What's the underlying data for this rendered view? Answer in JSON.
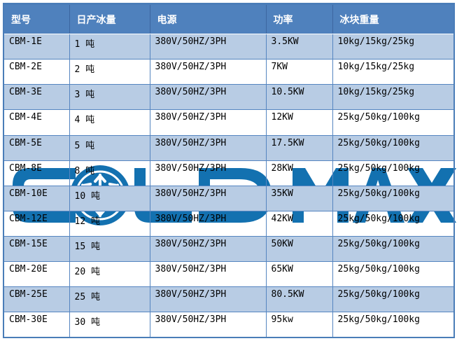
{
  "colors": {
    "header_bg": "#4f81bd",
    "header_text": "#ffffff",
    "row_shaded_bg": "#b8cce4",
    "row_plain_bg": "#ffffff",
    "table_border": "#4a7db8",
    "cell_border": "#5585c0",
    "header_cell_border": "#3c66a0",
    "watermark_blue": "#1371b0",
    "cell_text": "#000000"
  },
  "watermark": {
    "brand": "COLDMAX",
    "logo": "snowflake-logo"
  },
  "table": {
    "headers": [
      {
        "key": "model",
        "label": "型号"
      },
      {
        "key": "capacity",
        "label": "日产冰量"
      },
      {
        "key": "power_supply",
        "label": "电源"
      },
      {
        "key": "power",
        "label": "功率"
      },
      {
        "key": "block_weight",
        "label": "冰块重量"
      }
    ],
    "rows": [
      {
        "model": "CBM-1E",
        "capacity": "1 吨",
        "power_supply": "380V/50HZ/3PH",
        "power": "3.5KW",
        "block_weight": "10kg/15kg/25kg",
        "shaded": true
      },
      {
        "model": "CBM-2E",
        "capacity": "2 吨",
        "power_supply": "380V/50HZ/3PH",
        "power": "7KW",
        "block_weight": "10kg/15kg/25kg",
        "shaded": false
      },
      {
        "model": "CBM-3E",
        "capacity": "3 吨",
        "power_supply": "380V/50HZ/3PH",
        "power": "10.5KW",
        "block_weight": "10kg/15kg/25kg",
        "shaded": true
      },
      {
        "model": "CBM-4E",
        "capacity": "4 吨",
        "power_supply": "380V/50HZ/3PH",
        "power": "12KW",
        "block_weight": "25kg/50kg/100kg",
        "shaded": false
      },
      {
        "model": "CBM-5E",
        "capacity": "5 吨",
        "power_supply": "380V/50HZ/3PH",
        "power": "17.5KW",
        "block_weight": "25kg/50kg/100kg",
        "shaded": true
      },
      {
        "model": "CBM-8E",
        "capacity": "8 吨",
        "power_supply": "380V/50HZ/3PH",
        "power": "28KW",
        "block_weight": "25kg/50kg/100kg",
        "shaded": false
      },
      {
        "model": "CBM-10E",
        "capacity": "10 吨",
        "power_supply": "380V/50HZ/3PH",
        "power": "35KW",
        "block_weight": "25kg/50kg/100kg",
        "shaded": true
      },
      {
        "model": "CBM-12E",
        "capacity": "12 吨",
        "power_supply": "380V/50HZ/3PH",
        "power": "42KW",
        "block_weight": "25kg/50kg/100kg",
        "shaded": false
      },
      {
        "model": "CBM-15E",
        "capacity": "15 吨",
        "power_supply": "380V/50HZ/3PH",
        "power": "50KW",
        "block_weight": "25kg/50kg/100kg",
        "shaded": true
      },
      {
        "model": "CBM-20E",
        "capacity": "20 吨",
        "power_supply": "380V/50HZ/3PH",
        "power": "65KW",
        "block_weight": "25kg/50kg/100kg",
        "shaded": false
      },
      {
        "model": "CBM-25E",
        "capacity": "25 吨",
        "power_supply": "380V/50HZ/3PH",
        "power": "80.5KW",
        "block_weight": "25kg/50kg/100kg",
        "shaded": true
      },
      {
        "model": "CBM-30E",
        "capacity": "30 吨",
        "power_supply": "380V/50HZ/3PH",
        "power": "95kw",
        "block_weight": "25kg/50kg/100kg",
        "shaded": false
      }
    ]
  }
}
